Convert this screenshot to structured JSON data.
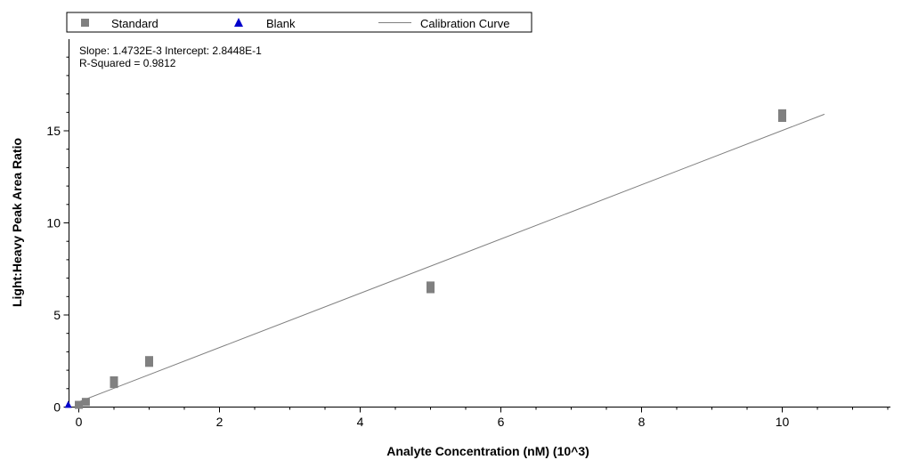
{
  "chart_data": {
    "type": "scatter",
    "xlabel": "Analyte Concentration (nM) (10^3)",
    "ylabel": "Light:Heavy Peak Area Ratio",
    "xlim": [
      -0.2,
      11.5
    ],
    "ylim": [
      0,
      20
    ],
    "x_ticks": [
      0,
      2,
      4,
      6,
      8,
      10
    ],
    "y_ticks": [
      0,
      5,
      10,
      15
    ],
    "legend_position": "top",
    "annotations": [
      "Slope: 1.4732E-3 Intercept: 2.8448E-1",
      "R-Squared = 0.9812"
    ],
    "series": [
      {
        "name": "Standard",
        "marker": "square",
        "color": "#808080",
        "points": [
          {
            "x": 0,
            "y": 0.12
          },
          {
            "x": 0.1,
            "y": 0.28
          },
          {
            "x": 0.5,
            "y": 1.25
          },
          {
            "x": 0.5,
            "y": 1.45
          },
          {
            "x": 1,
            "y": 2.4
          },
          {
            "x": 1,
            "y": 2.55
          },
          {
            "x": 5,
            "y": 6.4
          },
          {
            "x": 5,
            "y": 6.6
          },
          {
            "x": 10,
            "y": 15.7
          },
          {
            "x": 10,
            "y": 15.95
          }
        ]
      },
      {
        "name": "Blank",
        "marker": "triangle",
        "color": "#0000cc",
        "points": [
          {
            "x": -0.15,
            "y": 0.1
          }
        ]
      },
      {
        "name": "Calibration Curve",
        "marker": "line",
        "color": "#808080",
        "x_range": [
          0,
          10.6
        ],
        "slope": 0.0014732,
        "intercept": 0.28448,
        "x_scale": 1000
      }
    ]
  }
}
